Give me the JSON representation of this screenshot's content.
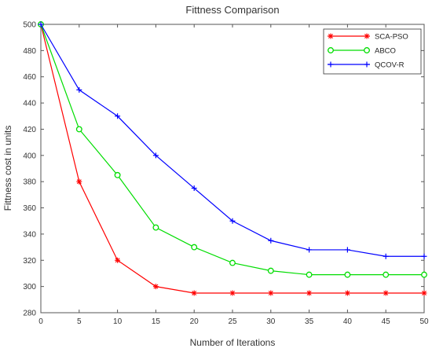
{
  "chart_data": {
    "type": "line",
    "title": "Fittness Comparison",
    "xlabel": "Number of Iterations",
    "ylabel": "Fittness cost in units",
    "xlim": [
      0,
      50
    ],
    "ylim": [
      280,
      500
    ],
    "xticks": [
      0,
      5,
      10,
      15,
      20,
      25,
      30,
      35,
      40,
      45,
      50
    ],
    "yticks": [
      280,
      300,
      320,
      340,
      360,
      380,
      400,
      420,
      440,
      460,
      480,
      500
    ],
    "grid": false,
    "legend_position": "top-right",
    "x": [
      0,
      5,
      10,
      15,
      20,
      25,
      30,
      35,
      40,
      45,
      50
    ],
    "series": [
      {
        "name": "SCA-PSO",
        "color": "#ff0000",
        "marker": "asterisk",
        "values": [
          500,
          380,
          320,
          300,
          295,
          295,
          295,
          295,
          295,
          295,
          295
        ]
      },
      {
        "name": "ABCO",
        "color": "#00dd00",
        "marker": "circle",
        "values": [
          500,
          420,
          385,
          345,
          330,
          318,
          312,
          309,
          309,
          309,
          309
        ]
      },
      {
        "name": "QCOV-R",
        "color": "#0000ff",
        "marker": "plus",
        "values": [
          500,
          450,
          430,
          400,
          375,
          350,
          335,
          328,
          328,
          323,
          323
        ]
      }
    ]
  }
}
